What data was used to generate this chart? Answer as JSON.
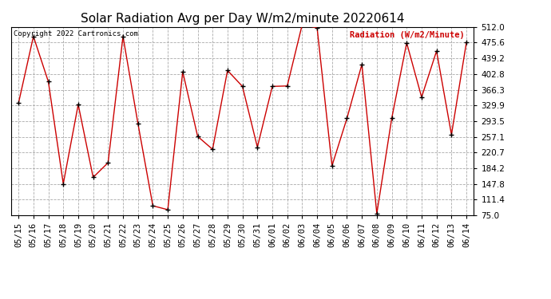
{
  "title": "Solar Radiation Avg per Day W/m2/minute 20220614",
  "copyright_text": "Copyright 2022 Cartronics.com",
  "legend_label": "Radiation (W/m2/Minute)",
  "x_labels": [
    "05/15",
    "05/16",
    "05/17",
    "05/18",
    "05/19",
    "05/20",
    "05/21",
    "05/22",
    "05/23",
    "05/24",
    "05/25",
    "05/26",
    "05/27",
    "05/28",
    "05/29",
    "05/30",
    "05/31",
    "06/01",
    "06/02",
    "06/03",
    "06/04",
    "06/05",
    "06/06",
    "06/07",
    "06/08",
    "06/09",
    "06/10",
    "06/11",
    "06/12",
    "06/13",
    "06/14"
  ],
  "y_values": [
    335,
    490,
    385,
    148,
    332,
    163,
    197,
    490,
    288,
    97,
    88,
    408,
    258,
    228,
    411,
    374,
    233,
    374,
    375,
    517,
    510,
    190,
    300,
    425,
    79,
    300,
    475,
    349,
    456,
    262,
    476
  ],
  "y_ticks": [
    75.0,
    111.4,
    147.8,
    184.2,
    220.7,
    257.1,
    293.5,
    329.9,
    366.3,
    402.8,
    439.2,
    475.6,
    512.0
  ],
  "ylim": [
    75.0,
    512.0
  ],
  "line_color": "#cc0000",
  "marker_color": "#000000",
  "grid_color": "#aaaaaa",
  "bg_color": "#ffffff",
  "title_fontsize": 11,
  "tick_fontsize": 7.5,
  "legend_color": "#cc0000"
}
